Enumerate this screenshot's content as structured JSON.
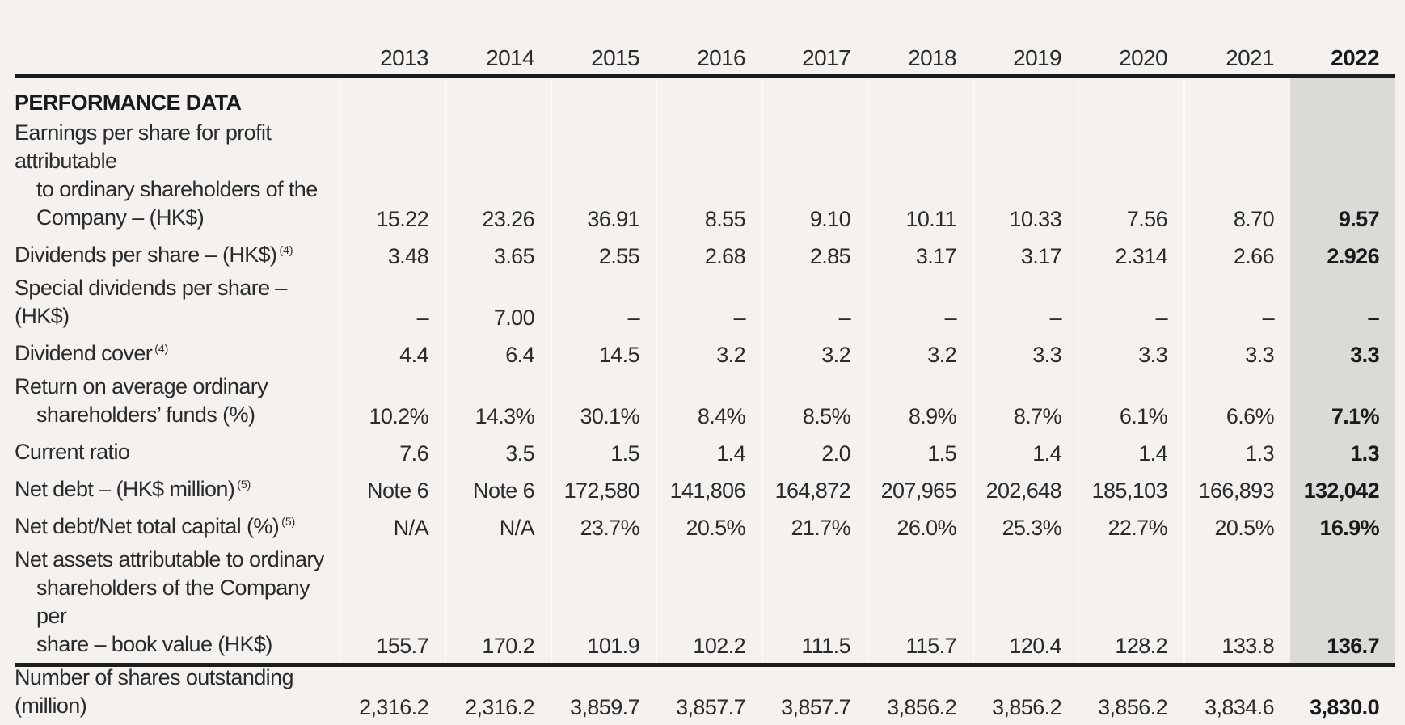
{
  "years": [
    "2013",
    "2014",
    "2015",
    "2016",
    "2017",
    "2018",
    "2019",
    "2020",
    "2021",
    "2022"
  ],
  "section_title": "PERFORMANCE DATA",
  "rows": [
    {
      "label_lines": [
        "Earnings per share for profit attributable",
        "to ordinary shareholders of the",
        "Company – (HK$)"
      ],
      "note": "",
      "values": [
        "15.22",
        "23.26",
        "36.91",
        "8.55",
        "9.10",
        "10.11",
        "10.33",
        "7.56",
        "8.70",
        "9.57"
      ]
    },
    {
      "label_lines": [
        "Dividends per share – (HK$)"
      ],
      "note": "(4)",
      "values": [
        "3.48",
        "3.65",
        "2.55",
        "2.68",
        "2.85",
        "3.17",
        "3.17",
        "2.314",
        "2.66",
        "2.926"
      ]
    },
    {
      "label_lines": [
        "Special dividends per share – (HK$)"
      ],
      "note": "",
      "values": [
        "–",
        "7.00",
        "–",
        "–",
        "–",
        "–",
        "–",
        "–",
        "–",
        "–"
      ]
    },
    {
      "label_lines": [
        "Dividend cover"
      ],
      "note": "(4)",
      "values": [
        "4.4",
        "6.4",
        "14.5",
        "3.2",
        "3.2",
        "3.2",
        "3.3",
        "3.3",
        "3.3",
        "3.3"
      ]
    },
    {
      "label_lines": [
        "Return on average ordinary",
        "shareholders’ funds (%)"
      ],
      "note": "",
      "values": [
        "10.2%",
        "14.3%",
        "30.1%",
        "8.4%",
        "8.5%",
        "8.9%",
        "8.7%",
        "6.1%",
        "6.6%",
        "7.1%"
      ]
    },
    {
      "label_lines": [
        "Current ratio"
      ],
      "note": "",
      "values": [
        "7.6",
        "3.5",
        "1.5",
        "1.4",
        "2.0",
        "1.5",
        "1.4",
        "1.4",
        "1.3",
        "1.3"
      ]
    },
    {
      "label_lines": [
        "Net debt – (HK$ million)"
      ],
      "note": "(5)",
      "values": [
        "Note 6",
        "Note 6",
        "172,580",
        "141,806",
        "164,872",
        "207,965",
        "202,648",
        "185,103",
        "166,893",
        "132,042"
      ]
    },
    {
      "label_lines": [
        "Net debt/Net total capital (%)"
      ],
      "note": "(5)",
      "values": [
        "N/A",
        "N/A",
        "23.7%",
        "20.5%",
        "21.7%",
        "26.0%",
        "25.3%",
        "22.7%",
        "20.5%",
        "16.9%"
      ]
    },
    {
      "label_lines": [
        "Net assets attributable to ordinary",
        "shareholders of the Company per",
        "share – book value (HK$)"
      ],
      "note": "",
      "values": [
        "155.7",
        "170.2",
        "101.9",
        "102.2",
        "111.5",
        "115.7",
        "120.4",
        "128.2",
        "133.8",
        "136.7"
      ]
    },
    {
      "label_lines": [
        "Number of shares outstanding (million)"
      ],
      "note": "",
      "values": [
        "2,316.2",
        "2,316.2",
        "3,859.7",
        "3,857.7",
        "3,857.7",
        "3,856.2",
        "3,856.2",
        "3,856.2",
        "3,834.6",
        "3,830.0"
      ]
    }
  ]
}
